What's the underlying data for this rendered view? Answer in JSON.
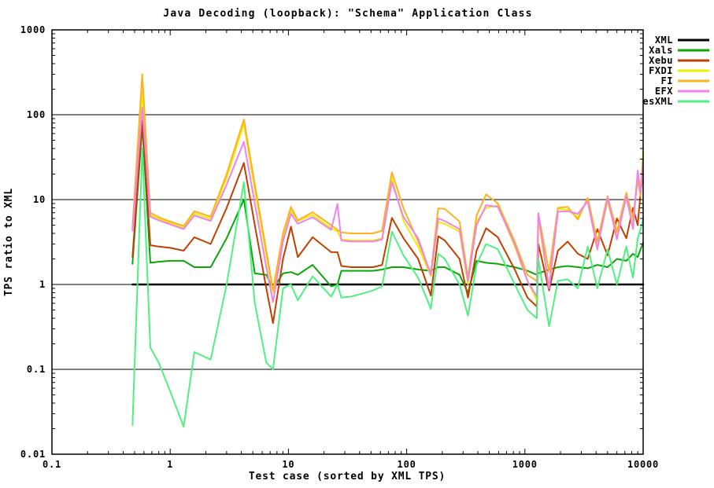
{
  "title": "Java Decoding (loopback): \"Schema\" Application Class",
  "chart_data": {
    "type": "line",
    "title": "Java Decoding (loopback): \"Schema\" Application Class",
    "xlabel": "Test case (sorted by XML TPS)",
    "ylabel": "TPS ratio to XML",
    "x_scale": "log",
    "y_scale": "log",
    "xlim": [
      0.1,
      10000
    ],
    "ylim": [
      0.01,
      1000
    ],
    "x_ticks": [
      "0.1",
      "1",
      "10",
      "100",
      "1000",
      "10000"
    ],
    "y_ticks": [
      "0.01",
      "0.1",
      "1",
      "10",
      "100",
      "1000"
    ],
    "grid": "horizontal-decades-only",
    "legend_position": "outside-top-right",
    "background": "#ffffff",
    "axis_color": "#000000",
    "x": [
      0.48,
      0.58,
      0.68,
      0.8,
      1.0,
      1.3,
      1.6,
      2.2,
      3.0,
      4.2,
      5.2,
      6.5,
      7.4,
      9,
      10.5,
      12,
      16,
      23,
      26,
      28,
      34,
      42,
      52,
      62,
      75,
      94,
      125,
      160,
      185,
      210,
      280,
      330,
      390,
      470,
      590,
      820,
      1050,
      1260,
      1300,
      1600,
      1900,
      2300,
      2800,
      3400,
      4100,
      5000,
      6000,
      7200,
      8200,
      9000,
      9500,
      10000
    ],
    "series": [
      {
        "name": "XML",
        "color": "#000000",
        "width": 2.5,
        "y": [
          1,
          1,
          1,
          1,
          1,
          1,
          1,
          1,
          1,
          1,
          1,
          1,
          1,
          1,
          1,
          1,
          1,
          1,
          1,
          1,
          1,
          1,
          1,
          1,
          1,
          1,
          1,
          1,
          1,
          1,
          1,
          1,
          1,
          1,
          1,
          1,
          1,
          1,
          1,
          1,
          1,
          1,
          1,
          1,
          1,
          1,
          1,
          1,
          1,
          1,
          1,
          1
        ]
      },
      {
        "name": "Xals",
        "color": "#0AA60A",
        "width": 2,
        "y": [
          1.75,
          75,
          1.8,
          1.85,
          1.9,
          1.9,
          1.6,
          1.6,
          3.5,
          10,
          1.35,
          1.3,
          0.9,
          1.35,
          1.4,
          1.3,
          1.7,
          0.95,
          1.0,
          1.45,
          1.45,
          1.45,
          1.45,
          1.5,
          1.6,
          1.6,
          1.5,
          1.45,
          1.6,
          1.6,
          1.3,
          0.8,
          1.9,
          1.8,
          1.75,
          1.6,
          1.45,
          1.3,
          1.35,
          1.5,
          1.6,
          1.65,
          1.6,
          1.55,
          1.7,
          1.6,
          2.0,
          1.9,
          2.3,
          2.1,
          2.6,
          3.1
        ]
      },
      {
        "name": "Xebu",
        "color": "#C04000",
        "width": 2,
        "y": [
          2.1,
          85,
          2.9,
          2.8,
          2.7,
          2.5,
          3.6,
          3.0,
          8,
          27,
          5,
          0.9,
          0.35,
          2.0,
          4.8,
          2.1,
          3.6,
          2.4,
          2.4,
          1.65,
          1.6,
          1.6,
          1.6,
          1.7,
          6.1,
          3.5,
          2.0,
          0.74,
          3.7,
          3.3,
          2.0,
          0.7,
          2.5,
          4.6,
          3.6,
          1.5,
          0.7,
          0.55,
          3.0,
          0.85,
          2.5,
          3.2,
          2.3,
          2.0,
          4.5,
          2.2,
          6.0,
          3.5,
          8.0,
          5.0,
          12,
          20
        ]
      },
      {
        "name": "FXDI",
        "color": "#EDED00",
        "width": 2,
        "y": [
          4.5,
          190,
          6.6,
          5.9,
          5.3,
          4.6,
          6.9,
          5.9,
          18,
          78,
          13,
          2.2,
          0.8,
          3.6,
          7.4,
          5.6,
          6.6,
          4.6,
          4.2,
          3.4,
          3.3,
          3.3,
          3.3,
          3.5,
          18,
          5.6,
          2.8,
          1.25,
          5.4,
          5.2,
          4.2,
          1.0,
          5.5,
          8.0,
          8.5,
          2.8,
          1.1,
          0.65,
          5.8,
          0.9,
          7.8,
          7.6,
          6.2,
          10,
          2.8,
          9.5,
          3.8,
          10.5,
          5.5,
          20,
          14,
          36
        ]
      },
      {
        "name": "FI",
        "color": "#FFB020",
        "width": 2,
        "y": [
          4.8,
          300,
          7.0,
          6.2,
          5.5,
          4.9,
          7.3,
          6.3,
          20,
          88,
          15,
          2.5,
          0.86,
          4.0,
          8.2,
          5.7,
          7.1,
          5.0,
          4.4,
          4.1,
          4.0,
          4.0,
          4.0,
          4.3,
          21,
          7.9,
          3.2,
          1.35,
          7.9,
          7.8,
          5.5,
          1.2,
          6.5,
          11.5,
          9.0,
          3.2,
          1.3,
          1.1,
          6.9,
          1.4,
          8.0,
          8.2,
          5.8,
          10.5,
          3.2,
          11,
          4.2,
          12,
          6.0,
          17,
          11,
          28
        ]
      },
      {
        "name": "EFX",
        "color": "#EE82EE",
        "width": 2,
        "y": [
          4.3,
          120,
          6.3,
          5.7,
          5.1,
          4.5,
          6.5,
          5.6,
          15,
          48,
          9,
          1.6,
          0.62,
          3.2,
          6.8,
          5.2,
          6.2,
          4.4,
          8.9,
          3.3,
          3.2,
          3.2,
          3.2,
          3.4,
          16,
          6.2,
          3.5,
          1.3,
          6.0,
          5.6,
          4.5,
          1.1,
          5.0,
          8.6,
          8.2,
          3.0,
          1.1,
          0.72,
          6.9,
          0.9,
          7.2,
          7.3,
          6.8,
          9.5,
          2.6,
          10.5,
          3.4,
          11,
          4.5,
          22,
          12,
          30
        ]
      },
      {
        "name": "esXML",
        "color": "#50F080",
        "width": 2,
        "y": [
          0.022,
          40,
          0.18,
          0.12,
          0.055,
          0.021,
          0.16,
          0.13,
          1.0,
          16,
          0.6,
          0.12,
          0.1,
          0.9,
          1.0,
          0.65,
          1.25,
          0.72,
          1.0,
          0.7,
          0.72,
          0.78,
          0.85,
          0.95,
          4.2,
          2.2,
          1.2,
          0.52,
          2.3,
          2.0,
          1.0,
          0.43,
          1.7,
          3.0,
          2.6,
          1.0,
          0.5,
          0.4,
          2.0,
          0.32,
          1.1,
          1.15,
          0.9,
          2.8,
          0.9,
          2.6,
          1.0,
          2.8,
          1.2,
          3.5,
          4.5,
          5.9
        ]
      }
    ]
  }
}
